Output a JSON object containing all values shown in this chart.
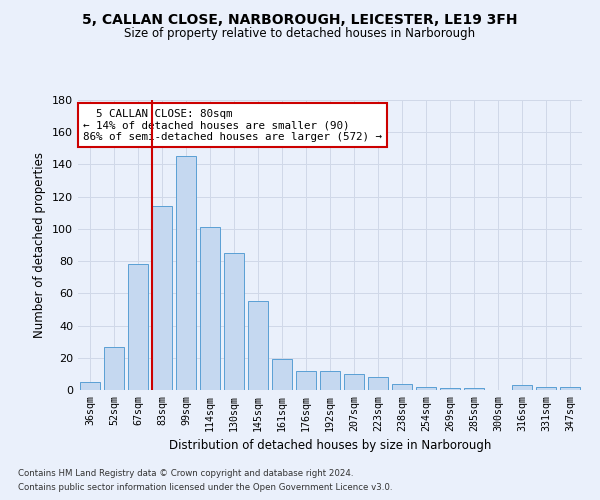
{
  "title": "5, CALLAN CLOSE, NARBOROUGH, LEICESTER, LE19 3FH",
  "subtitle": "Size of property relative to detached houses in Narborough",
  "xlabel": "Distribution of detached houses by size in Narborough",
  "ylabel": "Number of detached properties",
  "categories": [
    "36sqm",
    "52sqm",
    "67sqm",
    "83sqm",
    "99sqm",
    "114sqm",
    "130sqm",
    "145sqm",
    "161sqm",
    "176sqm",
    "192sqm",
    "207sqm",
    "223sqm",
    "238sqm",
    "254sqm",
    "269sqm",
    "285sqm",
    "300sqm",
    "316sqm",
    "331sqm",
    "347sqm"
  ],
  "values": [
    5,
    27,
    78,
    114,
    145,
    101,
    85,
    55,
    19,
    12,
    12,
    10,
    8,
    4,
    2,
    1,
    1,
    0,
    3,
    2,
    2
  ],
  "bar_color": "#c5d8f0",
  "bar_edge_color": "#5a9fd4",
  "grid_color": "#d0d8e8",
  "background_color": "#eaf0fb",
  "annotation_box_color": "#ffffff",
  "annotation_border_color": "#cc0000",
  "vline_color": "#cc0000",
  "vline_x_index": 3,
  "property_label": "5 CALLAN CLOSE: 80sqm",
  "pct_smaller": "14% of detached houses are smaller (90)",
  "pct_larger": "86% of semi-detached houses are larger (572)",
  "ylim": [
    0,
    180
  ],
  "yticks": [
    0,
    20,
    40,
    60,
    80,
    100,
    120,
    140,
    160,
    180
  ],
  "footnote1": "Contains HM Land Registry data © Crown copyright and database right 2024.",
  "footnote2": "Contains public sector information licensed under the Open Government Licence v3.0."
}
